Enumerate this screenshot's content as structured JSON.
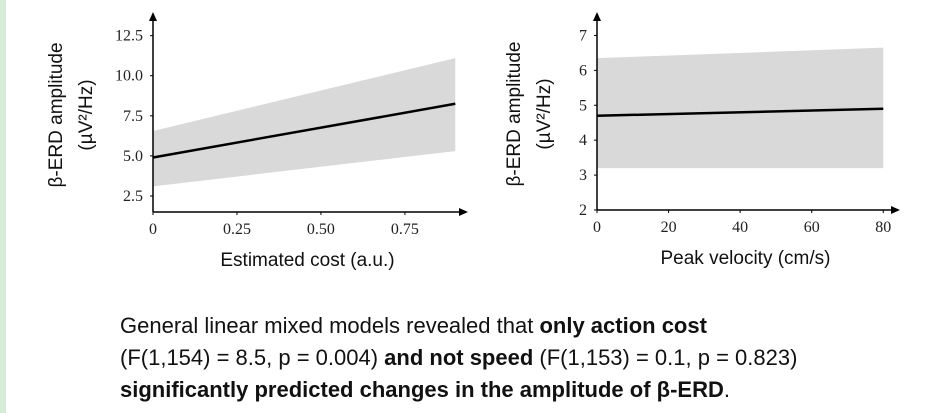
{
  "chart_data": [
    {
      "type": "line",
      "xlabel": "Estimated cost (a.u.)",
      "ylabel": [
        "β-ERD amplitude",
        "(µV²/Hz)"
      ],
      "x": [
        0,
        0.9
      ],
      "series": [
        {
          "color": "#000000",
          "band_color": "#d9d9d9",
          "values": [
            4.9,
            8.25
          ],
          "lower": [
            3.1,
            5.3
          ],
          "upper": [
            6.55,
            11.1
          ]
        }
      ],
      "xlim": [
        0,
        0.92
      ],
      "xticks": [
        0,
        0.25,
        {
          "value": 0.5,
          "label": "0.50"
        },
        0.75
      ],
      "ylim": [
        1.5,
        13.6
      ],
      "yticks": [
        2.5,
        {
          "value": 5,
          "label": "5.0"
        },
        7.5,
        {
          "value": 10,
          "label": "10.0"
        },
        12.5
      ],
      "grid": false
    },
    {
      "type": "line",
      "xlabel": "Peak velocity (cm/s)",
      "ylabel": [
        "β-ERD amplitude",
        "(µV²/Hz)"
      ],
      "x": [
        0,
        80
      ],
      "series": [
        {
          "color": "#000000",
          "band_color": "#d9d9d9",
          "values": [
            4.7,
            4.9
          ],
          "lower": [
            3.2,
            3.2
          ],
          "upper": [
            6.35,
            6.65
          ]
        }
      ],
      "xlim": [
        0,
        83
      ],
      "xticks": [
        0,
        20,
        40,
        60,
        80
      ],
      "ylim": [
        2,
        7.5
      ],
      "yticks": [
        2,
        3,
        4,
        5,
        6,
        7
      ],
      "grid": false
    }
  ],
  "caption": {
    "lines": [
      [
        {
          "text": "General linear mixed models revealed that ",
          "bold": false
        },
        {
          "text": "only action cost",
          "bold": true
        }
      ],
      [
        {
          "text": "(F(1,154) = 8.5, p = 0.004) ",
          "bold": false
        },
        {
          "text": "and not speed",
          "bold": true
        },
        {
          "text": " (F(1,153) = 0.1, p = 0.823)",
          "bold": false
        }
      ],
      [
        {
          "text": "significantly predicted changes in the amplitude of β-ERD",
          "bold": true
        },
        {
          "text": ".",
          "bold": false
        }
      ]
    ]
  }
}
